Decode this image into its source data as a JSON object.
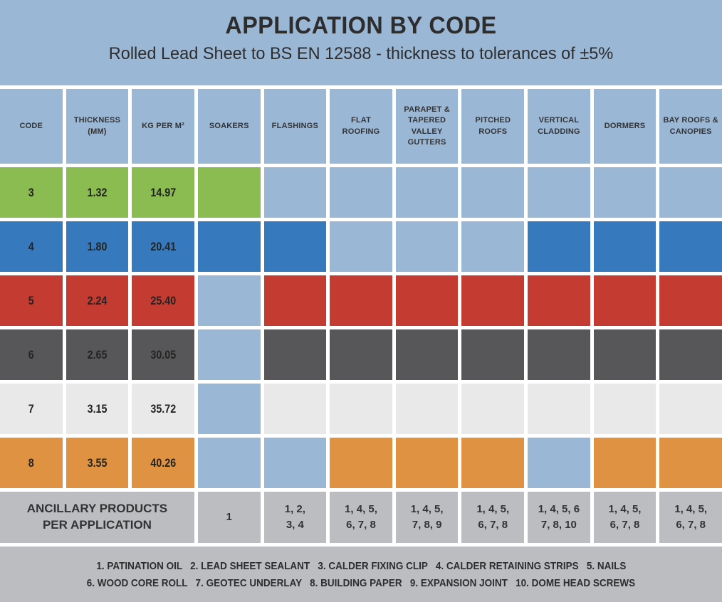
{
  "colors": {
    "band_blue": "#9bb7d6",
    "inactive_cell": "#9bb7d6",
    "ancillary_gray": "#bcbdc0",
    "footer_gray": "#bcbdc0",
    "text_dark": "#2d2d2d",
    "gap_white": "#ffffff"
  },
  "chart_data": {
    "type": "table",
    "title": "APPLICATION BY CODE",
    "subtitle": "Rolled Lead Sheet to BS EN 12588 - thickness to tolerances of ±5%",
    "columns": [
      "CODE",
      "THICKNESS (MM)",
      "KG PER M²",
      "SOAKERS",
      "FLASHINGS",
      "FLAT ROOFING",
      "PARAPET & TAPERED VALLEY GUTTERS",
      "PITCHED ROOFS",
      "VERTICAL CLADDING",
      "DORMERS",
      "BAY ROOFS & CANOPIES"
    ],
    "application_columns": [
      "SOAKERS",
      "FLASHINGS",
      "FLAT ROOFING",
      "PARAPET & TAPERED VALLEY GUTTERS",
      "PITCHED ROOFS",
      "VERTICAL CLADDING",
      "DORMERS",
      "BAY ROOFS & CANOPIES"
    ],
    "rows": [
      {
        "code": "3",
        "thickness_mm": "1.32",
        "kg_per_m2": "14.97",
        "color": "#8bbc51",
        "applications": [
          true,
          false,
          false,
          false,
          false,
          false,
          false,
          false
        ]
      },
      {
        "code": "4",
        "thickness_mm": "1.80",
        "kg_per_m2": "20.41",
        "color": "#3779bd",
        "applications": [
          true,
          true,
          false,
          false,
          false,
          true,
          true,
          true
        ]
      },
      {
        "code": "5",
        "thickness_mm": "2.24",
        "kg_per_m2": "25.40",
        "color": "#c43b31",
        "applications": [
          false,
          true,
          true,
          true,
          true,
          true,
          true,
          true
        ]
      },
      {
        "code": "6",
        "thickness_mm": "2.65",
        "kg_per_m2": "30.05",
        "color": "#575759",
        "applications": [
          false,
          true,
          true,
          true,
          true,
          true,
          true,
          true
        ]
      },
      {
        "code": "7",
        "thickness_mm": "3.15",
        "kg_per_m2": "35.72",
        "color": "#e9e9ea",
        "applications": [
          false,
          true,
          true,
          true,
          true,
          true,
          true,
          true
        ]
      },
      {
        "code": "8",
        "thickness_mm": "3.55",
        "kg_per_m2": "40.26",
        "color": "#df9342",
        "applications": [
          false,
          false,
          true,
          true,
          true,
          false,
          true,
          true
        ]
      }
    ],
    "ancillary": {
      "label": "ANCILLARY PRODUCTS\nPER APPLICATION",
      "values": [
        "1",
        "1, 2,\n3, 4",
        "1, 4, 5,\n6, 7, 8",
        "1, 4, 5,\n7, 8, 9",
        "1, 4, 5,\n6, 7, 8",
        "1, 4, 5, 6\n7, 8, 10",
        "1, 4, 5,\n6, 7, 8",
        "1, 4, 5,\n6, 7, 8"
      ]
    },
    "footnotes": [
      "1. PATINATION OIL   2. LEAD SHEET SEALANT   3. CALDER FIXING CLIP   4. CALDER RETAINING STRIPS   5. NAILS",
      "6. WOOD CORE ROLL   7. GEOTEC UNDERLAY   8. BUILDING PAPER   9. EXPANSION JOINT   10. DOME HEAD SCREWS"
    ]
  }
}
